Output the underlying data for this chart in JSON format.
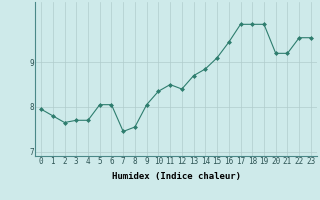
{
  "x": [
    0,
    1,
    2,
    3,
    4,
    5,
    6,
    7,
    8,
    9,
    10,
    11,
    12,
    13,
    14,
    15,
    16,
    17,
    18,
    19,
    20,
    21,
    22,
    23
  ],
  "y": [
    7.95,
    7.8,
    7.65,
    7.7,
    7.7,
    8.05,
    8.05,
    7.45,
    7.55,
    8.05,
    8.35,
    8.5,
    8.4,
    8.7,
    8.85,
    9.1,
    9.45,
    9.85,
    9.85,
    9.85,
    9.2,
    9.2,
    9.55,
    9.55
  ],
  "line_color": "#2e7d6e",
  "marker": "D",
  "marker_size": 2,
  "bg_color": "#ceeaea",
  "grid_color": "#b0cccc",
  "xlabel": "Humidex (Indice chaleur)",
  "xlim": [
    -0.5,
    23.5
  ],
  "ylim": [
    6.9,
    10.35
  ],
  "yticks": [
    7,
    8,
    9
  ],
  "xticks": [
    0,
    1,
    2,
    3,
    4,
    5,
    6,
    7,
    8,
    9,
    10,
    11,
    12,
    13,
    14,
    15,
    16,
    17,
    18,
    19,
    20,
    21,
    22,
    23
  ],
  "xlabel_fontsize": 6.5,
  "tick_fontsize": 5.5
}
